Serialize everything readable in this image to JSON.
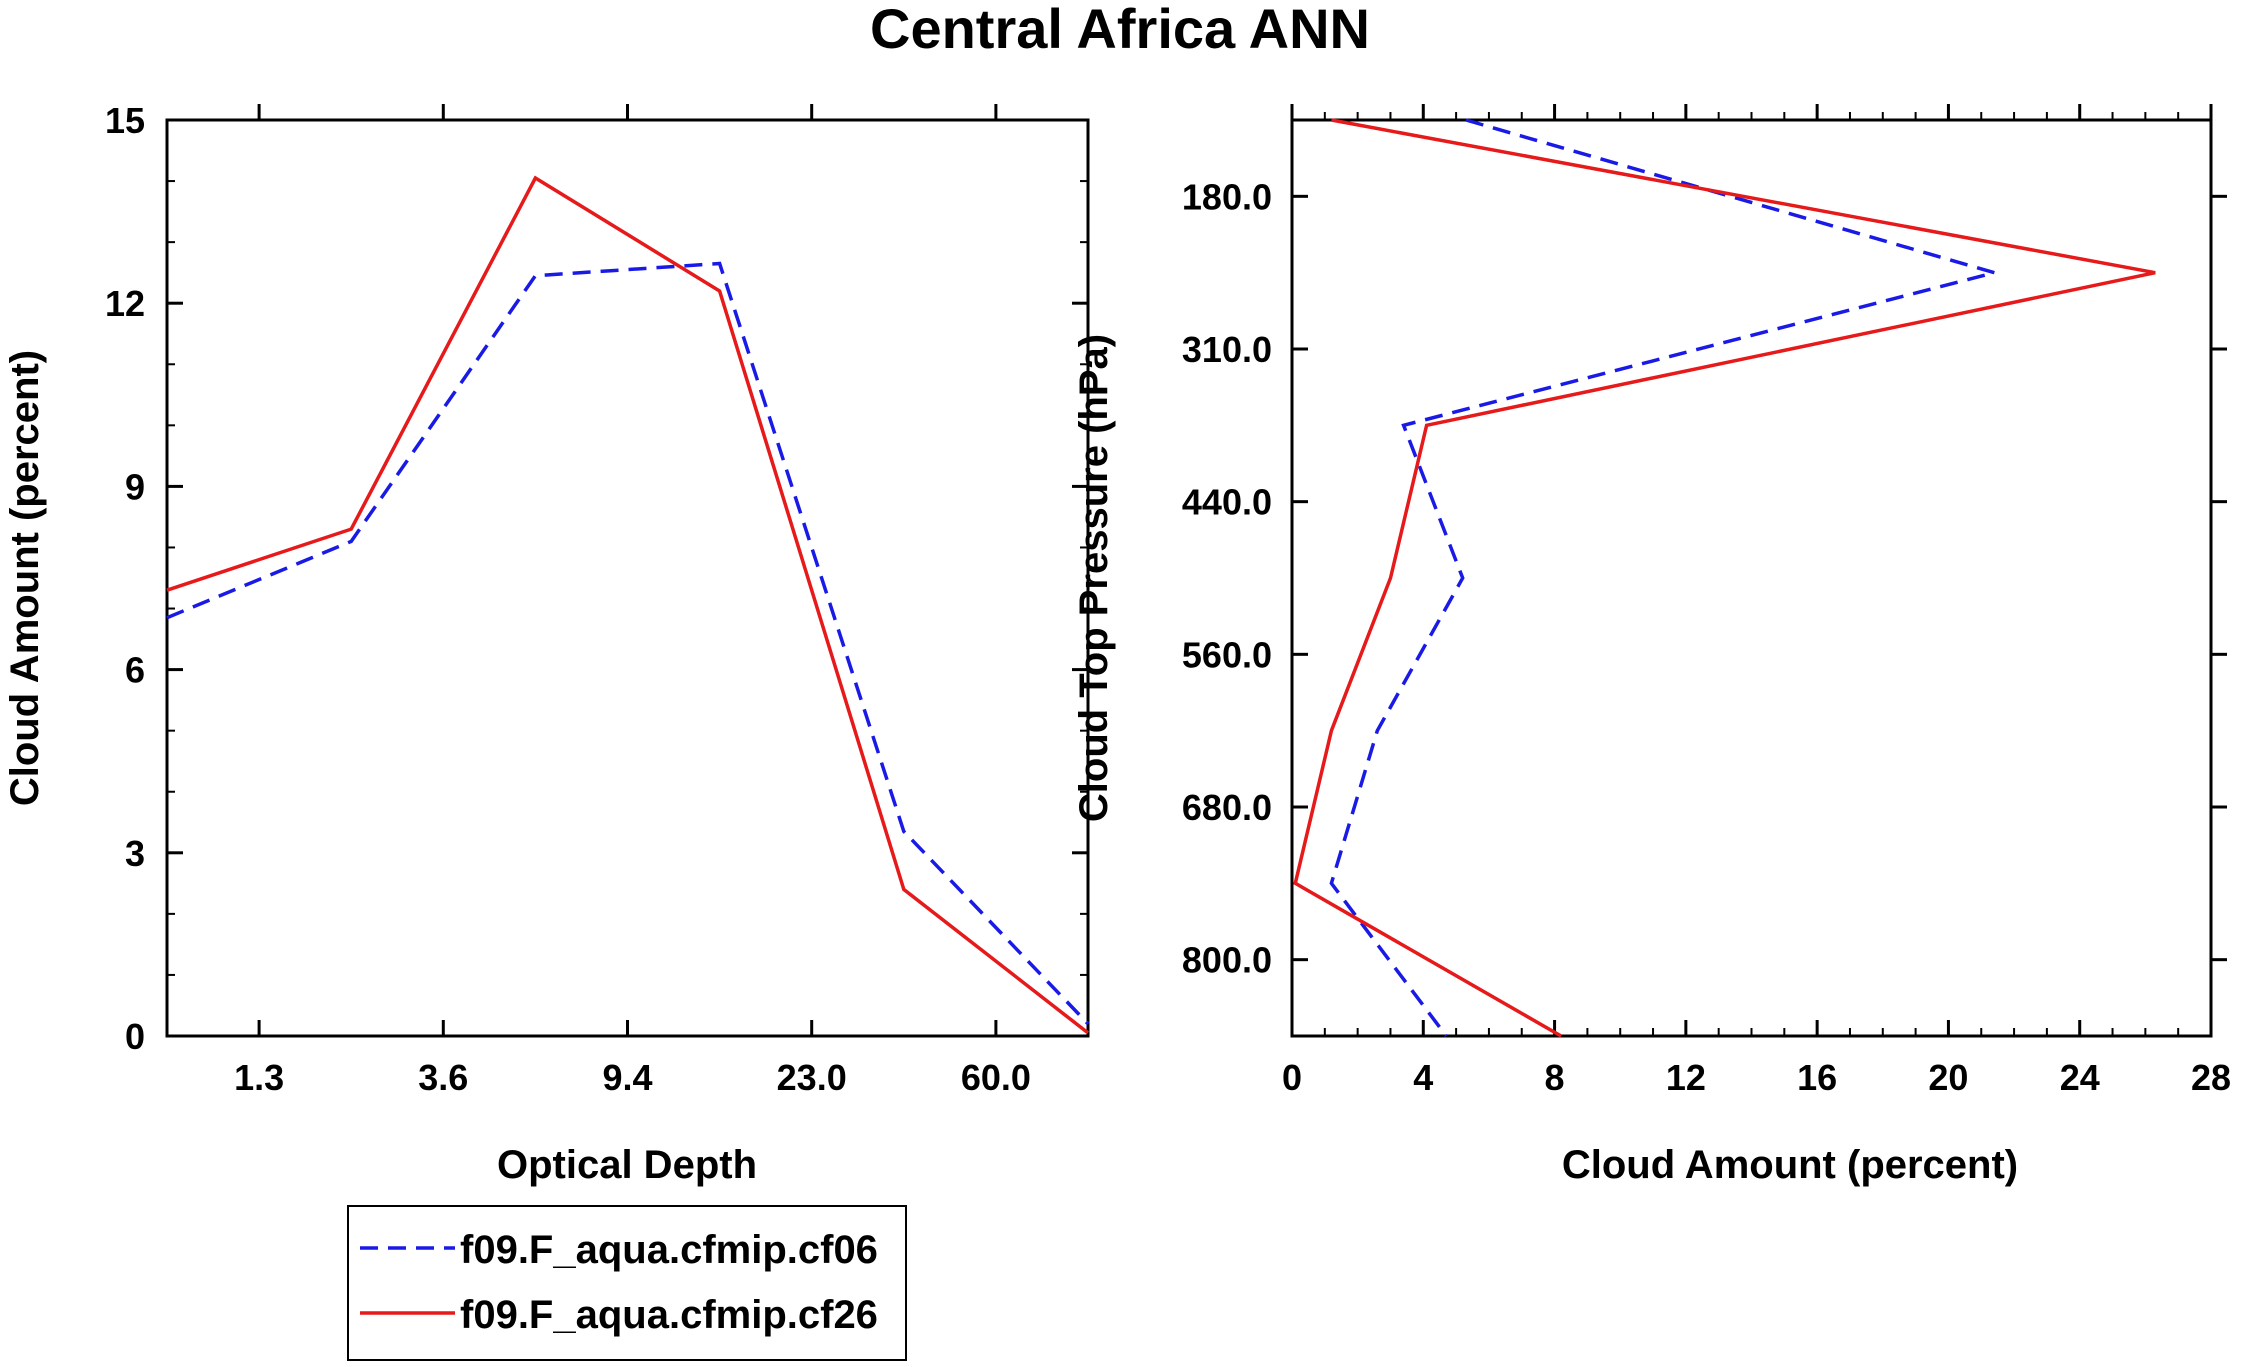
{
  "title": "Central Africa ANN",
  "colors": {
    "series_a": "#1a1ae6",
    "series_b": "#e61a1a",
    "axis": "#000000"
  },
  "legend": {
    "entries": [
      {
        "label": "f09.F_aqua.cfmip.cf06",
        "style": "dashed",
        "color": "#1a1ae6"
      },
      {
        "label": "f09.F_aqua.cfmip.cf26",
        "style": "solid",
        "color": "#e61a1a"
      }
    ]
  },
  "chart_data": [
    {
      "type": "line",
      "xlabel": "Optical Depth",
      "ylabel": "Cloud Amount (percent)",
      "ylim": [
        0,
        15
      ],
      "yticks": [
        "0",
        "3",
        "6",
        "9",
        "12",
        "15"
      ],
      "xticks": [
        "1.3",
        "3.6",
        "9.4",
        "23.0",
        "60.0"
      ],
      "x_index_range": [
        0,
        5
      ],
      "x": [
        0,
        1,
        2,
        3,
        4,
        5
      ],
      "series": [
        {
          "name": "f09.F_aqua.cfmip.cf06",
          "values": [
            6.85,
            8.1,
            12.45,
            12.65,
            3.35,
            0.2
          ]
        },
        {
          "name": "f09.F_aqua.cfmip.cf26",
          "values": [
            7.3,
            8.3,
            14.05,
            12.2,
            2.4,
            0.05
          ]
        }
      ]
    },
    {
      "type": "line",
      "xlabel": "Cloud Amount (percent)",
      "ylabel": "Cloud Top Pressure (hPa)",
      "xlim": [
        0,
        28
      ],
      "xticks": [
        "0",
        "4",
        "8",
        "12",
        "16",
        "20",
        "24",
        "28"
      ],
      "yticks": [
        "180.0",
        "310.0",
        "440.0",
        "560.0",
        "680.0",
        "800.0"
      ],
      "y_index_range": [
        0,
        6
      ],
      "pressure_levels_index": [
        0,
        1,
        2,
        3,
        4,
        5,
        6
      ],
      "series": [
        {
          "name": "f09.F_aqua.cfmip.cf06",
          "values": [
            5.3,
            21.4,
            3.4,
            5.2,
            2.6,
            1.2,
            4.7
          ]
        },
        {
          "name": "f09.F_aqua.cfmip.cf26",
          "values": [
            1.2,
            26.3,
            4.1,
            3.0,
            1.2,
            0.1,
            8.2
          ]
        }
      ]
    }
  ]
}
